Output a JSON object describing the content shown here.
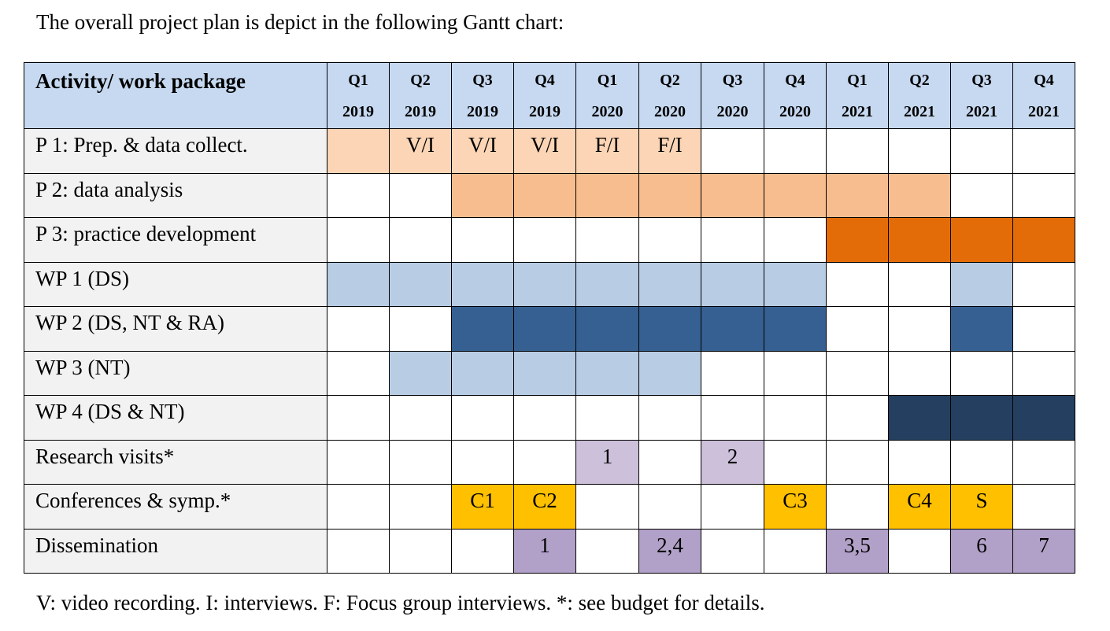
{
  "intro_text": "The overall project plan is depict in the following Gantt chart:",
  "header": {
    "activity_label": "Activity/ work package",
    "quarters": [
      {
        "q": "Q1",
        "year": "2019"
      },
      {
        "q": "Q2",
        "year": "2019"
      },
      {
        "q": "Q3",
        "year": "2019"
      },
      {
        "q": "Q4",
        "year": "2019"
      },
      {
        "q": "Q1",
        "year": "2020"
      },
      {
        "q": "Q2",
        "year": "2020"
      },
      {
        "q": "Q3",
        "year": "2020"
      },
      {
        "q": "Q4",
        "year": "2020"
      },
      {
        "q": "Q1",
        "year": "2021"
      },
      {
        "q": "Q2",
        "year": "2021"
      },
      {
        "q": "Q3",
        "year": "2021"
      },
      {
        "q": "Q4",
        "year": "2021"
      }
    ]
  },
  "colors": {
    "header_bg": "#c6d9f1",
    "label_bg": "#f2f2f2",
    "peach_light": "#fbd5b5",
    "peach": "#f8bd8e",
    "orange": "#e36c09",
    "blue_light": "#b8cce4",
    "blue_mid": "#366092",
    "blue_dark": "#243f60",
    "lavender": "#ccc0da",
    "purple": "#b1a0c7",
    "gold": "#ffc000"
  },
  "rows": [
    {
      "label": "P 1: Prep. & data collect.",
      "cells": [
        {
          "text": "",
          "color": "#fbd5b5"
        },
        {
          "text": "V/I",
          "color": "#fbd5b5"
        },
        {
          "text": "V/I",
          "color": "#fbd5b5"
        },
        {
          "text": "V/I",
          "color": "#fbd5b5"
        },
        {
          "text": "F/I",
          "color": "#fbd5b5"
        },
        {
          "text": "F/I",
          "color": "#fbd5b5"
        },
        {
          "text": "",
          "color": ""
        },
        {
          "text": "",
          "color": ""
        },
        {
          "text": "",
          "color": ""
        },
        {
          "text": "",
          "color": ""
        },
        {
          "text": "",
          "color": ""
        },
        {
          "text": "",
          "color": ""
        }
      ]
    },
    {
      "label": "P 2: data analysis",
      "cells": [
        {
          "text": "",
          "color": ""
        },
        {
          "text": "",
          "color": ""
        },
        {
          "text": "",
          "color": "#f8bd8e"
        },
        {
          "text": "",
          "color": "#f8bd8e"
        },
        {
          "text": "",
          "color": "#f8bd8e"
        },
        {
          "text": "",
          "color": "#f8bd8e"
        },
        {
          "text": "",
          "color": "#f8bd8e"
        },
        {
          "text": "",
          "color": "#f8bd8e"
        },
        {
          "text": "",
          "color": "#f8bd8e"
        },
        {
          "text": "",
          "color": "#f8bd8e"
        },
        {
          "text": "",
          "color": ""
        },
        {
          "text": "",
          "color": ""
        }
      ]
    },
    {
      "label": "P 3: practice development",
      "cells": [
        {
          "text": "",
          "color": ""
        },
        {
          "text": "",
          "color": ""
        },
        {
          "text": "",
          "color": ""
        },
        {
          "text": "",
          "color": ""
        },
        {
          "text": "",
          "color": ""
        },
        {
          "text": "",
          "color": ""
        },
        {
          "text": "",
          "color": ""
        },
        {
          "text": "",
          "color": ""
        },
        {
          "text": "",
          "color": "#e36c09"
        },
        {
          "text": "",
          "color": "#e36c09"
        },
        {
          "text": "",
          "color": "#e36c09"
        },
        {
          "text": "",
          "color": "#e36c09"
        }
      ]
    },
    {
      "label": "WP 1 (DS)",
      "cells": [
        {
          "text": "",
          "color": "#b8cce4"
        },
        {
          "text": "",
          "color": "#b8cce4"
        },
        {
          "text": "",
          "color": "#b8cce4"
        },
        {
          "text": "",
          "color": "#b8cce4"
        },
        {
          "text": "",
          "color": "#b8cce4"
        },
        {
          "text": "",
          "color": "#b8cce4"
        },
        {
          "text": "",
          "color": "#b8cce4"
        },
        {
          "text": "",
          "color": "#b8cce4"
        },
        {
          "text": "",
          "color": ""
        },
        {
          "text": "",
          "color": ""
        },
        {
          "text": "",
          "color": "#b8cce4"
        },
        {
          "text": "",
          "color": ""
        }
      ]
    },
    {
      "label": "WP 2 (DS, NT & RA)",
      "cells": [
        {
          "text": "",
          "color": ""
        },
        {
          "text": "",
          "color": ""
        },
        {
          "text": "",
          "color": "#366092"
        },
        {
          "text": "",
          "color": "#366092"
        },
        {
          "text": "",
          "color": "#366092"
        },
        {
          "text": "",
          "color": "#366092"
        },
        {
          "text": "",
          "color": "#366092"
        },
        {
          "text": "",
          "color": "#366092"
        },
        {
          "text": "",
          "color": ""
        },
        {
          "text": "",
          "color": ""
        },
        {
          "text": "",
          "color": "#366092"
        },
        {
          "text": "",
          "color": ""
        }
      ]
    },
    {
      "label": "WP 3 (NT)",
      "cells": [
        {
          "text": "",
          "color": ""
        },
        {
          "text": "",
          "color": "#b8cce4"
        },
        {
          "text": "",
          "color": "#b8cce4"
        },
        {
          "text": "",
          "color": "#b8cce4"
        },
        {
          "text": "",
          "color": "#b8cce4"
        },
        {
          "text": "",
          "color": "#b8cce4"
        },
        {
          "text": "",
          "color": ""
        },
        {
          "text": "",
          "color": ""
        },
        {
          "text": "",
          "color": ""
        },
        {
          "text": "",
          "color": ""
        },
        {
          "text": "",
          "color": ""
        },
        {
          "text": "",
          "color": ""
        }
      ]
    },
    {
      "label": "WP 4 (DS & NT)",
      "cells": [
        {
          "text": "",
          "color": ""
        },
        {
          "text": "",
          "color": ""
        },
        {
          "text": "",
          "color": ""
        },
        {
          "text": "",
          "color": ""
        },
        {
          "text": "",
          "color": ""
        },
        {
          "text": "",
          "color": ""
        },
        {
          "text": "",
          "color": ""
        },
        {
          "text": "",
          "color": ""
        },
        {
          "text": "",
          "color": ""
        },
        {
          "text": "",
          "color": "#243f60"
        },
        {
          "text": "",
          "color": "#243f60"
        },
        {
          "text": "",
          "color": "#243f60"
        }
      ]
    },
    {
      "label": "Research visits*",
      "cells": [
        {
          "text": "",
          "color": ""
        },
        {
          "text": "",
          "color": ""
        },
        {
          "text": "",
          "color": ""
        },
        {
          "text": "",
          "color": ""
        },
        {
          "text": "1",
          "color": "#ccc0da"
        },
        {
          "text": "",
          "color": ""
        },
        {
          "text": "2",
          "color": "#ccc0da"
        },
        {
          "text": "",
          "color": ""
        },
        {
          "text": "",
          "color": ""
        },
        {
          "text": "",
          "color": ""
        },
        {
          "text": "",
          "color": ""
        },
        {
          "text": "",
          "color": ""
        }
      ]
    },
    {
      "label": "Conferences & symp.*",
      "cells": [
        {
          "text": "",
          "color": ""
        },
        {
          "text": "",
          "color": ""
        },
        {
          "text": "C1",
          "color": "#ffc000"
        },
        {
          "text": "C2",
          "color": "#ffc000"
        },
        {
          "text": "",
          "color": ""
        },
        {
          "text": "",
          "color": ""
        },
        {
          "text": "",
          "color": ""
        },
        {
          "text": "C3",
          "color": "#ffc000"
        },
        {
          "text": "",
          "color": ""
        },
        {
          "text": "C4",
          "color": "#ffc000"
        },
        {
          "text": "S",
          "color": "#ffc000"
        },
        {
          "text": "",
          "color": ""
        }
      ]
    },
    {
      "label": "Dissemination",
      "cells": [
        {
          "text": "",
          "color": ""
        },
        {
          "text": "",
          "color": ""
        },
        {
          "text": "",
          "color": ""
        },
        {
          "text": "1",
          "color": "#b1a0c7"
        },
        {
          "text": "",
          "color": ""
        },
        {
          "text": "2,4",
          "color": "#b1a0c7"
        },
        {
          "text": "",
          "color": ""
        },
        {
          "text": "",
          "color": ""
        },
        {
          "text": "3,5",
          "color": "#b1a0c7"
        },
        {
          "text": "",
          "color": ""
        },
        {
          "text": "6",
          "color": "#b1a0c7"
        },
        {
          "text": "7",
          "color": "#b1a0c7"
        }
      ]
    }
  ],
  "footnote": "V: video recording. I: interviews. F: Focus group interviews. *: see budget for details."
}
